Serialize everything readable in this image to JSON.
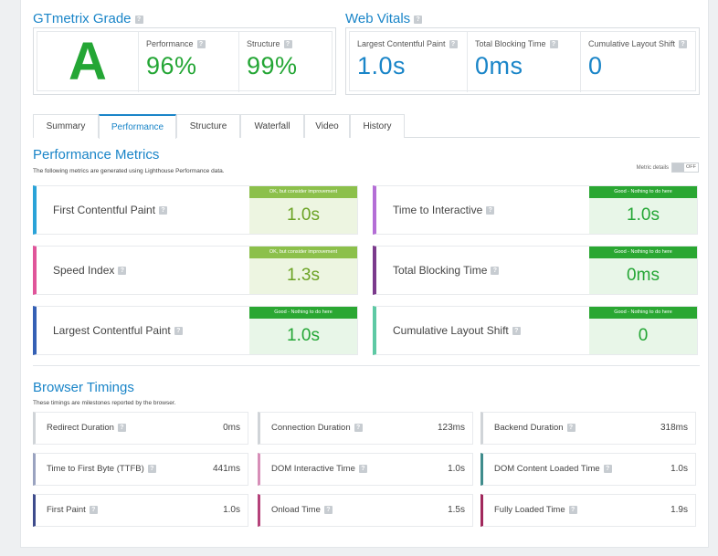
{
  "grade": {
    "title": "GTmetrix Grade",
    "letter": "A",
    "performance_label": "Performance",
    "performance_value": "96%",
    "structure_label": "Structure",
    "structure_value": "99%"
  },
  "vitals": {
    "title": "Web Vitals",
    "items": [
      {
        "label": "Largest Contentful Paint",
        "value": "1.0s"
      },
      {
        "label": "Total Blocking Time",
        "value": "0ms"
      },
      {
        "label": "Cumulative Layout Shift",
        "value": "0"
      }
    ]
  },
  "tabs": [
    "Summary",
    "Performance",
    "Structure",
    "Waterfall",
    "Video",
    "History"
  ],
  "active_tab": "Performance",
  "performance_metrics": {
    "title": "Performance Metrics",
    "description": "The following metrics are generated using Lighthouse Performance data.",
    "toggle_label": "Metric details",
    "toggle_state": "OFF",
    "items": [
      {
        "name": "First Contentful Paint",
        "status": "OK, but consider improvement",
        "value": "1.0s",
        "color": "#2aa3d8",
        "level": "ok"
      },
      {
        "name": "Time to Interactive",
        "status": "Good - Nothing to do here",
        "value": "1.0s",
        "color": "#b46ed6",
        "level": "good"
      },
      {
        "name": "Speed Index",
        "status": "OK, but consider improvement",
        "value": "1.3s",
        "color": "#e0559a",
        "level": "ok"
      },
      {
        "name": "Total Blocking Time",
        "status": "Good - Nothing to do here",
        "value": "0ms",
        "color": "#7b3a8c",
        "level": "good"
      },
      {
        "name": "Largest Contentful Paint",
        "status": "Good - Nothing to do here",
        "value": "1.0s",
        "color": "#3560b5",
        "level": "good"
      },
      {
        "name": "Cumulative Layout Shift",
        "status": "Good - Nothing to do here",
        "value": "0",
        "color": "#5ec9a4",
        "level": "good"
      }
    ]
  },
  "browser_timings": {
    "title": "Browser Timings",
    "description": "These timings are milestones reported by the browser.",
    "items": [
      {
        "label": "Redirect Duration",
        "value": "0ms",
        "color": "#d0d4d8"
      },
      {
        "label": "Connection Duration",
        "value": "123ms",
        "color": "#d0d4d8"
      },
      {
        "label": "Backend Duration",
        "value": "318ms",
        "color": "#d0d4d8"
      },
      {
        "label": "Time to First Byte (TTFB)",
        "value": "441ms",
        "color": "#9aa3c0"
      },
      {
        "label": "DOM Interactive Time",
        "value": "1.0s",
        "color": "#d78fb8"
      },
      {
        "label": "DOM Content Loaded Time",
        "value": "1.0s",
        "color": "#3f8c8c"
      },
      {
        "label": "First Paint",
        "value": "1.0s",
        "color": "#3e4c8c"
      },
      {
        "label": "Onload Time",
        "value": "1.5s",
        "color": "#b5427a"
      },
      {
        "label": "Fully Loaded Time",
        "value": "1.9s",
        "color": "#a1285c"
      }
    ]
  }
}
